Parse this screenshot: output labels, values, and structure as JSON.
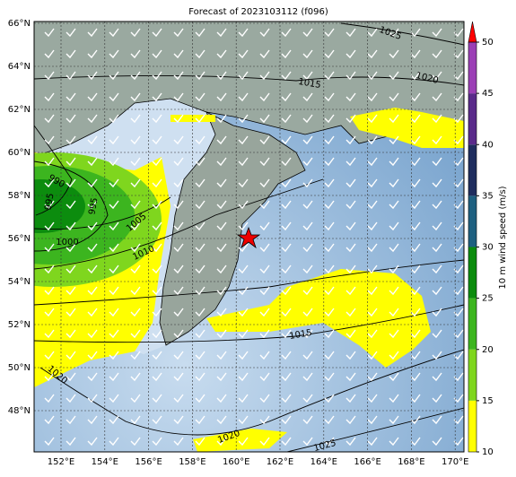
{
  "title": "Forecast of 2023103112 (f096)",
  "lat_ticks": [
    {
      "value": 66,
      "label": "66°N"
    },
    {
      "value": 64,
      "label": "64°N"
    },
    {
      "value": 62,
      "label": "62°N"
    },
    {
      "value": 60,
      "label": "60°N"
    },
    {
      "value": 58,
      "label": "58°N"
    },
    {
      "value": 56,
      "label": "56°N"
    },
    {
      "value": 54,
      "label": "54°N"
    },
    {
      "value": 52,
      "label": "52°N"
    },
    {
      "value": 50,
      "label": "50°N"
    },
    {
      "value": 48,
      "label": "48°N"
    }
  ],
  "lon_ticks": [
    {
      "value": 152,
      "label": "152°E"
    },
    {
      "value": 154,
      "label": "154°E"
    },
    {
      "value": 156,
      "label": "156°E"
    },
    {
      "value": 158,
      "label": "158°E"
    },
    {
      "value": 160,
      "label": "160°E"
    },
    {
      "value": 162,
      "label": "162°E"
    },
    {
      "value": 164,
      "label": "164°E"
    },
    {
      "value": 166,
      "label": "166°E"
    },
    {
      "value": 168,
      "label": "168°E"
    },
    {
      "value": 170,
      "label": "170°E"
    }
  ],
  "contour_labels": [
    "1025",
    "1020",
    "1015",
    "990",
    "995",
    "995",
    "1005",
    "1000",
    "1010",
    "1015",
    "1020",
    "1020",
    "1025"
  ],
  "colorbar": {
    "label": "10 m wind speed (m/s)",
    "ticks": [
      10,
      15,
      20,
      25,
      30,
      35,
      40,
      45,
      50
    ],
    "colors": [
      "#ffff00",
      "#7fd61e",
      "#3cb51f",
      "#0c8c0e",
      "#1e6080",
      "#1f2d5e",
      "#5a2a8a",
      "#9b3fb5"
    ],
    "extend_color": "#ff0000"
  }
}
